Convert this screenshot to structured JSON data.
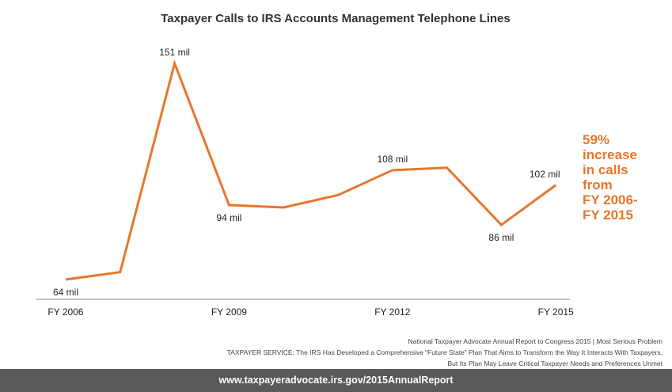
{
  "chart_data": {
    "type": "line",
    "title": "Taxpayer Calls to IRS Accounts Management Telephone Lines",
    "x": [
      "FY 2006",
      "FY 2007",
      "FY 2008",
      "FY 2009",
      "FY 2010",
      "FY 2011",
      "FY 2012",
      "FY 2013",
      "FY 2014",
      "FY 2015"
    ],
    "xtick_labels": [
      "FY 2006",
      "FY 2009",
      "FY 2012",
      "FY 2015"
    ],
    "series": [
      {
        "name": "Calls (millions)",
        "values": [
          64,
          67,
          151,
          94,
          93,
          98,
          108,
          109,
          86,
          102
        ],
        "color": "#e8762b"
      }
    ],
    "data_labels": [
      {
        "index": 0,
        "text": "64 mil",
        "pos": "below"
      },
      {
        "index": 2,
        "text": "151 mil",
        "pos": "above"
      },
      {
        "index": 3,
        "text": "94 mil",
        "pos": "below"
      },
      {
        "index": 6,
        "text": "108 mil",
        "pos": "above"
      },
      {
        "index": 8,
        "text": "86 mil",
        "pos": "below"
      },
      {
        "index": 9,
        "text": "102 mil",
        "pos": "above"
      }
    ],
    "annotation": [
      "59%",
      "increase",
      "in calls",
      "from",
      "FY 2006-",
      "FY 2015"
    ],
    "xlabel": "",
    "ylabel": "",
    "ylim": [
      64,
      151
    ],
    "grid": false
  },
  "source": {
    "line1": "National Taxpayer Advocate Annual Report to Congress 2015 | Most Serious Problem",
    "line2": "TAXPAYER SERVICE: The IRS Has Developed a Comprehensive “Future State” Plan That Aims to Transform the Way It Interacts With Taxpayers,",
    "line3": "But Its Plan May Leave Critical Taxpayer Needs and Preferences Unmet"
  },
  "footer": {
    "url": "www.taxpayeradvocate.irs.gov/2015AnnualReport"
  }
}
